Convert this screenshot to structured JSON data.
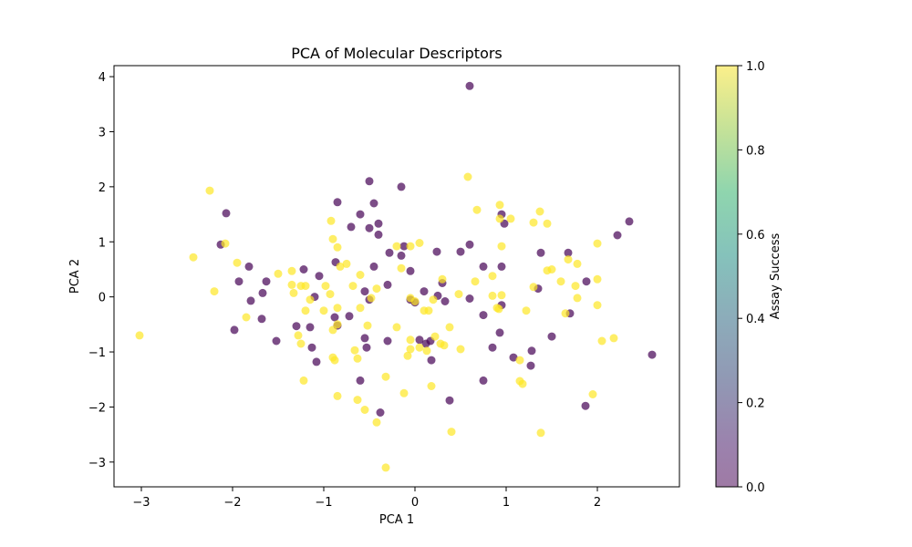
{
  "chart_data": {
    "type": "scatter",
    "title": "PCA of Molecular Descriptors",
    "xlabel": "PCA 1",
    "ylabel": "PCA 2",
    "xlim": [
      -3.3,
      2.9
    ],
    "ylim": [
      -3.45,
      4.2
    ],
    "xticks": [
      -3,
      -2,
      -1,
      0,
      1,
      2
    ],
    "yticks": [
      -3,
      -2,
      -1,
      0,
      1,
      2,
      3,
      4
    ],
    "grid": false,
    "colorbar": {
      "label": "Assay Success",
      "range": [
        0.0,
        1.0
      ],
      "ticks": [
        "0.0",
        "0.2",
        "0.4",
        "0.6",
        "0.8",
        "1.0"
      ],
      "colormap": "viridis",
      "alpha": 0.7
    },
    "colors": {
      "class_0": "#440154",
      "class_1": "#fde725"
    },
    "series": [
      {
        "label_value": 0,
        "points": [
          [
            0.6,
            3.83
          ],
          [
            -0.5,
            2.1
          ],
          [
            -0.15,
            2.0
          ],
          [
            -0.85,
            1.72
          ],
          [
            -0.45,
            1.7
          ],
          [
            -2.07,
            1.52
          ],
          [
            0.95,
            1.5
          ],
          [
            -0.6,
            1.5
          ],
          [
            -0.4,
            1.33
          ],
          [
            -0.5,
            1.25
          ],
          [
            0.98,
            1.33
          ],
          [
            -0.7,
            1.27
          ],
          [
            2.35,
            1.37
          ],
          [
            -0.4,
            1.13
          ],
          [
            2.22,
            1.12
          ],
          [
            -2.13,
            0.95
          ],
          [
            0.6,
            0.95
          ],
          [
            1.38,
            0.8
          ],
          [
            -0.28,
            0.8
          ],
          [
            -0.15,
            0.75
          ],
          [
            1.68,
            0.8
          ],
          [
            0.5,
            0.82
          ],
          [
            0.24,
            0.82
          ],
          [
            -0.87,
            0.63
          ],
          [
            -1.82,
            0.55
          ],
          [
            -0.45,
            0.55
          ],
          [
            0.95,
            0.55
          ],
          [
            0.75,
            0.55
          ],
          [
            -1.05,
            0.38
          ],
          [
            -1.22,
            0.5
          ],
          [
            -1.93,
            0.28
          ],
          [
            -1.63,
            0.28
          ],
          [
            -0.05,
            0.47
          ],
          [
            1.88,
            0.28
          ],
          [
            0.1,
            0.1
          ],
          [
            0.3,
            0.25
          ],
          [
            -0.55,
            0.1
          ],
          [
            -1.67,
            0.07
          ],
          [
            1.35,
            0.15
          ],
          [
            -0.3,
            0.22
          ],
          [
            0.25,
            0.02
          ],
          [
            0.6,
            -0.03
          ],
          [
            -1.8,
            -0.07
          ],
          [
            -0.5,
            -0.05
          ],
          [
            -1.1,
            0.0
          ],
          [
            0.95,
            -0.15
          ],
          [
            0.33,
            -0.08
          ],
          [
            0.75,
            -0.33
          ],
          [
            -0.88,
            -0.37
          ],
          [
            -0.72,
            -0.35
          ],
          [
            -1.68,
            -0.4
          ],
          [
            -1.3,
            -0.53
          ],
          [
            -1.15,
            -0.55
          ],
          [
            -0.85,
            -0.52
          ],
          [
            -1.98,
            -0.6
          ],
          [
            0.93,
            -0.65
          ],
          [
            -0.55,
            -0.75
          ],
          [
            -1.52,
            -0.8
          ],
          [
            -0.3,
            -0.8
          ],
          [
            0.05,
            -0.78
          ],
          [
            0.12,
            -0.85
          ],
          [
            0.17,
            -0.8
          ],
          [
            1.5,
            -0.72
          ],
          [
            -0.53,
            -0.92
          ],
          [
            -1.13,
            -0.92
          ],
          [
            0.85,
            -0.92
          ],
          [
            1.28,
            -0.98
          ],
          [
            2.6,
            -1.05
          ],
          [
            -1.08,
            -1.18
          ],
          [
            0.18,
            -1.15
          ],
          [
            1.08,
            -1.1
          ],
          [
            1.27,
            -1.25
          ],
          [
            0.75,
            -1.52
          ],
          [
            -0.6,
            -1.52
          ],
          [
            0.38,
            -1.88
          ],
          [
            1.87,
            -1.98
          ],
          [
            -0.38,
            -2.1
          ],
          [
            1.7,
            -0.3
          ],
          [
            -0.05,
            -0.05
          ],
          [
            -0.12,
            0.92
          ],
          [
            0.0,
            -0.1
          ]
        ]
      },
      {
        "label_value": 1,
        "points": [
          [
            0.58,
            2.18
          ],
          [
            -2.25,
            1.93
          ],
          [
            0.93,
            1.67
          ],
          [
            0.68,
            1.58
          ],
          [
            1.37,
            1.55
          ],
          [
            0.93,
            1.42
          ],
          [
            1.05,
            1.42
          ],
          [
            1.3,
            1.35
          ],
          [
            1.45,
            1.33
          ],
          [
            -0.92,
            1.38
          ],
          [
            -0.9,
            1.05
          ],
          [
            -0.85,
            0.9
          ],
          [
            -0.2,
            0.92
          ],
          [
            0.05,
            0.98
          ],
          [
            -0.05,
            0.92
          ],
          [
            0.95,
            0.92
          ],
          [
            2.0,
            0.97
          ],
          [
            -2.08,
            0.97
          ],
          [
            -2.43,
            0.72
          ],
          [
            1.68,
            0.68
          ],
          [
            -1.95,
            0.62
          ],
          [
            -0.75,
            0.6
          ],
          [
            -0.82,
            0.55
          ],
          [
            -0.15,
            0.52
          ],
          [
            1.78,
            0.6
          ],
          [
            1.5,
            0.5
          ],
          [
            -0.6,
            0.4
          ],
          [
            -1.5,
            0.42
          ],
          [
            -1.35,
            0.47
          ],
          [
            0.85,
            0.38
          ],
          [
            2.0,
            0.32
          ],
          [
            1.6,
            0.28
          ],
          [
            0.66,
            0.28
          ],
          [
            -0.68,
            0.2
          ],
          [
            -0.98,
            0.2
          ],
          [
            0.3,
            0.32
          ],
          [
            1.76,
            0.2
          ],
          [
            -1.35,
            0.22
          ],
          [
            -1.25,
            0.2
          ],
          [
            -1.2,
            0.2
          ],
          [
            -0.42,
            0.15
          ],
          [
            -2.2,
            0.1
          ],
          [
            -1.33,
            0.07
          ],
          [
            -0.93,
            0.05
          ],
          [
            0.48,
            0.05
          ],
          [
            1.3,
            0.18
          ],
          [
            0.85,
            0.02
          ],
          [
            -0.48,
            -0.02
          ],
          [
            1.78,
            -0.02
          ],
          [
            -0.05,
            -0.02
          ],
          [
            0.95,
            0.03
          ],
          [
            0.0,
            -0.08
          ],
          [
            0.2,
            -0.05
          ],
          [
            1.22,
            -0.25
          ],
          [
            -1.15,
            -0.05
          ],
          [
            -1.0,
            -0.25
          ],
          [
            -0.85,
            -0.2
          ],
          [
            -0.6,
            -0.2
          ],
          [
            -1.2,
            -0.25
          ],
          [
            -1.85,
            -0.37
          ],
          [
            0.1,
            -0.25
          ],
          [
            0.15,
            -0.25
          ],
          [
            2.0,
            -0.15
          ],
          [
            1.65,
            -0.3
          ],
          [
            0.38,
            -0.55
          ],
          [
            0.9,
            -0.2
          ],
          [
            -0.52,
            -0.52
          ],
          [
            -0.85,
            -0.5
          ],
          [
            -0.9,
            -0.6
          ],
          [
            -0.2,
            -0.55
          ],
          [
            -1.28,
            -0.7
          ],
          [
            -1.25,
            -0.85
          ],
          [
            -0.05,
            -0.78
          ],
          [
            0.22,
            -0.72
          ],
          [
            2.05,
            -0.8
          ],
          [
            -3.02,
            -0.7
          ],
          [
            2.18,
            -0.75
          ],
          [
            0.05,
            -0.92
          ],
          [
            0.28,
            -0.85
          ],
          [
            0.32,
            -0.88
          ],
          [
            0.13,
            -0.98
          ],
          [
            -0.05,
            -0.95
          ],
          [
            -0.66,
            -0.97
          ],
          [
            0.5,
            -0.95
          ],
          [
            -0.08,
            -1.07
          ],
          [
            -0.63,
            -1.12
          ],
          [
            -0.9,
            -1.1
          ],
          [
            -0.88,
            -1.15
          ],
          [
            1.15,
            -1.15
          ],
          [
            -1.22,
            -1.52
          ],
          [
            1.15,
            -1.53
          ],
          [
            1.18,
            -1.58
          ],
          [
            0.18,
            -1.62
          ],
          [
            -0.32,
            -1.45
          ],
          [
            -0.12,
            -1.75
          ],
          [
            1.95,
            -1.77
          ],
          [
            -0.85,
            -1.8
          ],
          [
            -0.63,
            -1.87
          ],
          [
            -0.55,
            -2.05
          ],
          [
            -0.42,
            -2.28
          ],
          [
            0.4,
            -2.45
          ],
          [
            1.38,
            -2.47
          ],
          [
            -0.32,
            -3.1
          ],
          [
            1.45,
            0.48
          ],
          [
            0.92,
            -0.22
          ]
        ]
      }
    ]
  }
}
